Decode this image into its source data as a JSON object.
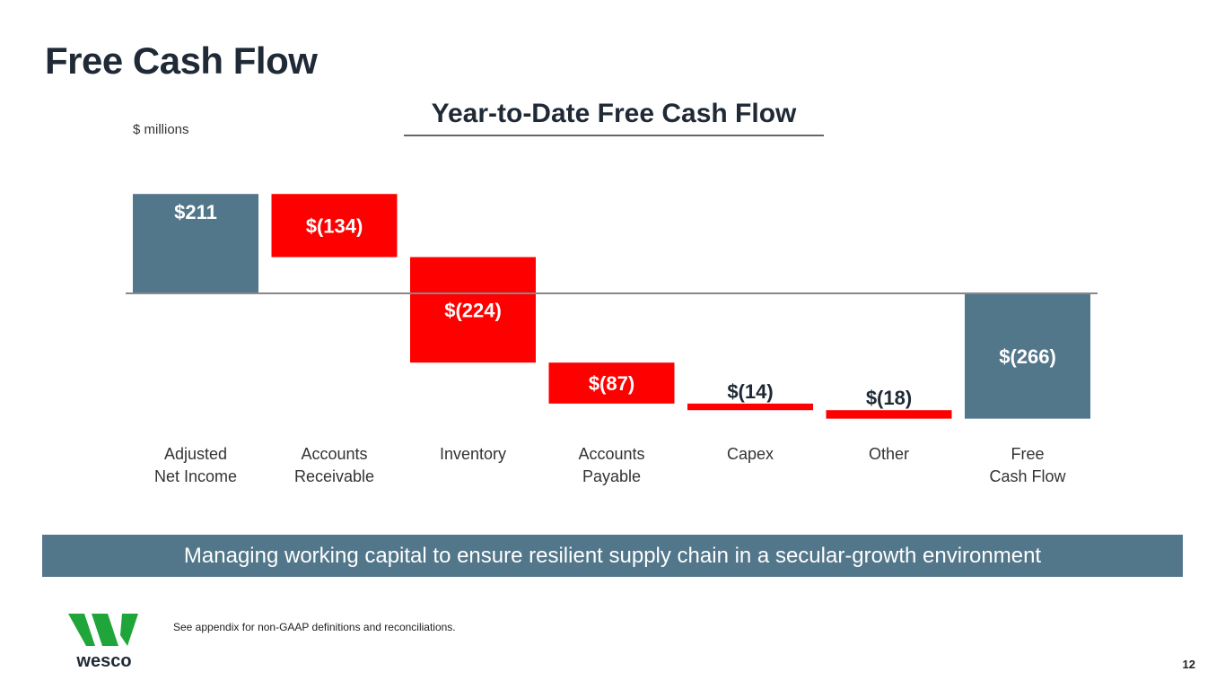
{
  "slide": {
    "title": "Free Cash Flow",
    "page_number": "12"
  },
  "banner": {
    "text": "Managing working capital to ensure resilient supply chain in a secular-growth environment",
    "color": "#52768a"
  },
  "footnote": "See appendix for non-GAAP definitions and reconciliations.",
  "logo": {
    "text": "wesco",
    "mark_color": "#1fa53a",
    "text_color": "#1f2a36"
  },
  "chart_data": {
    "type": "waterfall",
    "title": "Year-to-Date Free Cash Flow",
    "units_label": "$ millions",
    "categories": [
      "Adjusted\nNet Income",
      "Accounts\nReceivable",
      "Inventory",
      "Accounts\nPayable",
      "Capex",
      "Other",
      "Free\nCash Flow"
    ],
    "values": [
      211,
      -134,
      -224,
      -87,
      -14,
      -18,
      -266
    ],
    "kinds": [
      "total",
      "delta",
      "delta",
      "delta",
      "delta",
      "delta",
      "total"
    ],
    "data_labels": [
      "$211",
      "$(134)",
      "$(224)",
      "$(87)",
      "$(14)",
      "$(18)",
      "$(266)"
    ],
    "colors": {
      "total": "#52768a",
      "decrease": "#ff0000",
      "baseline": "#888888"
    }
  }
}
